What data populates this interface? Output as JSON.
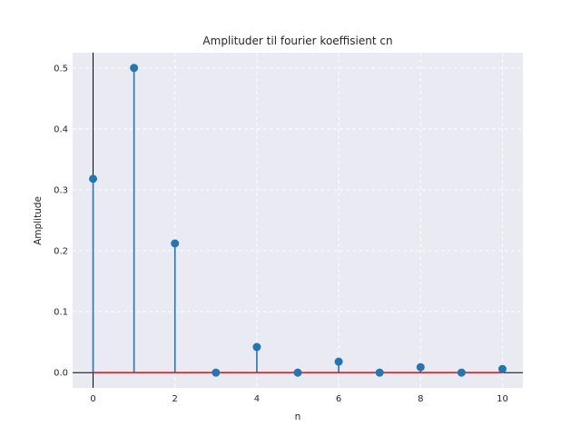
{
  "chart_data": {
    "type": "stem",
    "title": "Amplituder til fourier koeffisient cn",
    "xlabel": "n",
    "ylabel": "Amplitude",
    "xlim": [
      -0.5,
      10.5
    ],
    "ylim": [
      -0.025,
      0.525
    ],
    "xticks": [
      0,
      2,
      4,
      6,
      8,
      10
    ],
    "xtick_labels": [
      "0",
      "2",
      "4",
      "6",
      "8",
      "10"
    ],
    "yticks": [
      0.0,
      0.1,
      0.2,
      0.3,
      0.4,
      0.5
    ],
    "ytick_labels": [
      "0.0",
      "0.1",
      "0.2",
      "0.3",
      "0.4",
      "0.5"
    ],
    "grid": true,
    "x": [
      0,
      1,
      2,
      3,
      4,
      5,
      6,
      7,
      8,
      9,
      10
    ],
    "values": [
      0.318,
      0.5,
      0.212,
      0.0,
      0.042,
      0.0,
      0.018,
      0.0,
      0.009,
      0.0,
      0.006
    ],
    "colors": {
      "background": "#eaeaf2",
      "grid": "#ffffff",
      "stem": "#1f77b4",
      "marker": "#1f77b4",
      "baseline": "#d62728",
      "zero_axes": "#000000"
    }
  }
}
